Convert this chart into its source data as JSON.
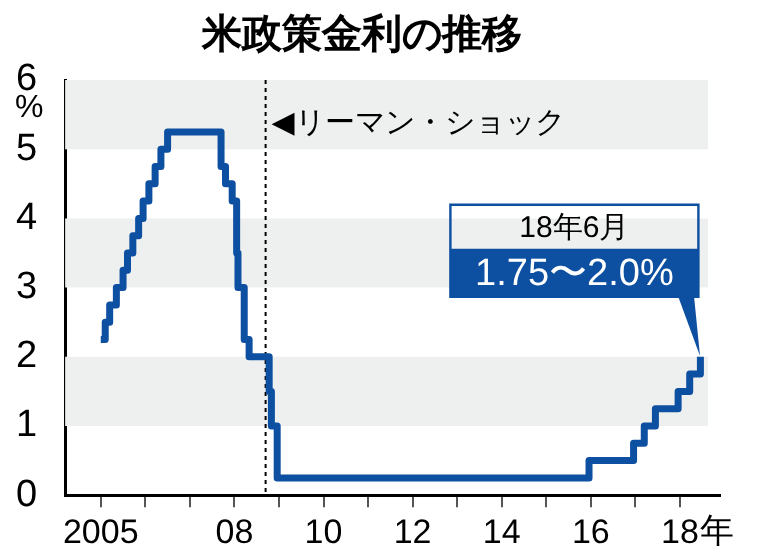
{
  "chart_data": {
    "type": "step",
    "title": "米政策金利の推移",
    "ylabel": "%",
    "x": [
      2005.0,
      2005.1,
      2005.2,
      2005.35,
      2005.5,
      2005.6,
      2005.72,
      2005.85,
      2005.95,
      2006.08,
      2006.22,
      2006.35,
      2006.5,
      2007.7,
      2007.8,
      2007.95,
      2008.05,
      2008.08,
      2008.22,
      2008.33,
      2008.78,
      2008.83,
      2008.96,
      2015.96,
      2016.96,
      2017.2,
      2017.45,
      2017.96,
      2018.22,
      2018.46
    ],
    "series": [
      {
        "color": "#0d4fa0",
        "values": [
          2.25,
          2.5,
          2.75,
          3.0,
          3.25,
          3.5,
          3.75,
          4.0,
          4.25,
          4.5,
          4.75,
          5.0,
          5.25,
          4.75,
          4.5,
          4.25,
          3.5,
          3.0,
          2.25,
          2.0,
          1.5,
          1.0,
          0.25,
          0.5,
          0.75,
          1.0,
          1.25,
          1.5,
          1.75,
          2.0
        ]
      }
    ],
    "xlim": [
      2004.2,
      2018.9
    ],
    "xticks": [
      {
        "value": 2005,
        "label": "2005"
      },
      {
        "value": 2006,
        "label": null
      },
      {
        "value": 2007,
        "label": null
      },
      {
        "value": 2008,
        "label": "08"
      },
      {
        "value": 2009,
        "label": null
      },
      {
        "value": 2010,
        "label": "10"
      },
      {
        "value": 2011,
        "label": null
      },
      {
        "value": 2012,
        "label": "12"
      },
      {
        "value": 2013,
        "label": null
      },
      {
        "value": 2014,
        "label": "14"
      },
      {
        "value": 2015,
        "label": null
      },
      {
        "value": 2016,
        "label": "16"
      },
      {
        "value": 2017,
        "label": null
      },
      {
        "value": 2018,
        "label": "18"
      }
    ],
    "xlabel": "年",
    "ylim": [
      0,
      6
    ],
    "yticks": [
      0,
      1,
      2,
      3,
      4,
      5,
      6
    ],
    "bands": [
      {
        "axis": "y",
        "from": 1,
        "to": 2,
        "color": "#eef0ef"
      },
      {
        "axis": "y",
        "from": 3,
        "to": 4,
        "color": "#eef0ef"
      },
      {
        "axis": "y",
        "from": 5,
        "to": 6,
        "color": "#eef0ef"
      }
    ],
    "legend": false,
    "marker": "none",
    "line_style": "solid",
    "ref_lines": [
      {
        "axis": "x",
        "value": 2008.7,
        "label": "◀リーマン・ショック",
        "color": "#000000",
        "line_style": "dotted"
      }
    ],
    "annotations": [
      "18年6月",
      "1.75〜2.0%"
    ]
  }
}
